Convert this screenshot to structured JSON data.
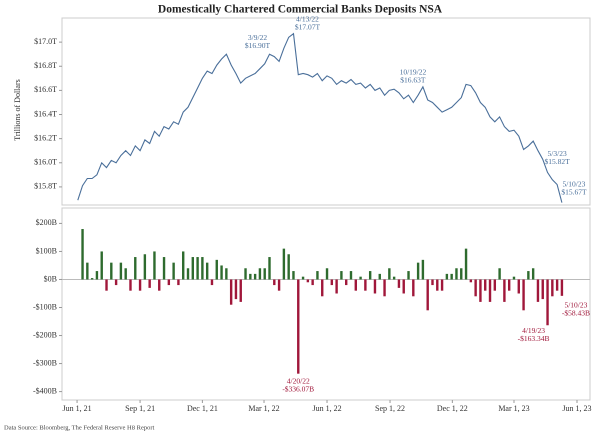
{
  "chart_data": [
    {
      "type": "line",
      "title": "Domestically Chartered Commercial Banks Deposits NSA",
      "y_label": "Trillions of Dollars",
      "color": "#4a6f9a",
      "x": [
        "2021-06-02",
        "2021-06-09",
        "2021-06-16",
        "2021-06-23",
        "2021-06-30",
        "2021-07-07",
        "2021-07-14",
        "2021-07-21",
        "2021-07-28",
        "2021-08-04",
        "2021-08-11",
        "2021-08-18",
        "2021-08-25",
        "2021-09-01",
        "2021-09-08",
        "2021-09-15",
        "2021-09-22",
        "2021-09-29",
        "2021-10-06",
        "2021-10-13",
        "2021-10-20",
        "2021-10-27",
        "2021-11-03",
        "2021-11-10",
        "2021-11-17",
        "2021-11-24",
        "2021-12-01",
        "2021-12-08",
        "2021-12-15",
        "2021-12-22",
        "2021-12-29",
        "2022-01-05",
        "2022-01-12",
        "2022-01-19",
        "2022-01-26",
        "2022-02-02",
        "2022-02-09",
        "2022-02-16",
        "2022-02-23",
        "2022-03-02",
        "2022-03-09",
        "2022-03-16",
        "2022-03-23",
        "2022-03-30",
        "2022-04-06",
        "2022-04-13",
        "2022-04-20",
        "2022-04-27",
        "2022-05-04",
        "2022-05-11",
        "2022-05-18",
        "2022-05-25",
        "2022-06-01",
        "2022-06-08",
        "2022-06-15",
        "2022-06-22",
        "2022-06-29",
        "2022-07-06",
        "2022-07-13",
        "2022-07-20",
        "2022-07-27",
        "2022-08-03",
        "2022-08-10",
        "2022-08-17",
        "2022-08-24",
        "2022-08-31",
        "2022-09-07",
        "2022-09-14",
        "2022-09-21",
        "2022-09-28",
        "2022-10-05",
        "2022-10-12",
        "2022-10-19",
        "2022-10-26",
        "2022-11-02",
        "2022-11-09",
        "2022-11-16",
        "2022-11-23",
        "2022-11-30",
        "2022-12-07",
        "2022-12-14",
        "2022-12-21",
        "2022-12-28",
        "2023-01-04",
        "2023-01-11",
        "2023-01-18",
        "2023-01-25",
        "2023-02-01",
        "2023-02-08",
        "2023-02-15",
        "2023-02-22",
        "2023-03-01",
        "2023-03-08",
        "2023-03-15",
        "2023-03-22",
        "2023-03-29",
        "2023-04-05",
        "2023-04-12",
        "2023-04-19",
        "2023-04-26",
        "2023-05-03",
        "2023-05-10"
      ],
      "values": [
        15.69,
        15.81,
        15.87,
        15.87,
        15.9,
        16.0,
        15.96,
        16.02,
        16.0,
        16.06,
        16.1,
        16.06,
        16.14,
        16.1,
        16.19,
        16.16,
        16.26,
        16.22,
        16.3,
        16.28,
        16.34,
        16.32,
        16.42,
        16.46,
        16.54,
        16.62,
        16.7,
        16.76,
        16.74,
        16.81,
        16.86,
        16.9,
        16.81,
        16.74,
        16.66,
        16.7,
        16.72,
        16.74,
        16.78,
        16.82,
        16.9,
        16.88,
        16.84,
        16.95,
        17.04,
        17.07,
        16.73,
        16.74,
        16.73,
        16.71,
        16.74,
        16.68,
        16.72,
        16.7,
        16.65,
        16.68,
        16.66,
        16.69,
        16.65,
        16.66,
        16.62,
        16.65,
        16.6,
        16.62,
        16.56,
        16.6,
        16.61,
        16.58,
        16.53,
        16.56,
        16.5,
        16.56,
        16.63,
        16.52,
        16.5,
        16.46,
        16.42,
        16.44,
        16.46,
        16.5,
        16.54,
        16.65,
        16.64,
        16.58,
        16.5,
        16.46,
        16.38,
        16.34,
        16.38,
        16.3,
        16.26,
        16.27,
        16.22,
        16.11,
        16.14,
        16.18,
        16.1,
        16.03,
        15.92,
        15.86,
        15.82,
        15.67
      ],
      "xlim": [
        "2021-05-10",
        "2023-06-20"
      ],
      "ylim": [
        15.65,
        17.2
      ],
      "yticks": [
        {
          "value": 15.8,
          "label": "$15.8T"
        },
        {
          "value": 16.0,
          "label": "$16.0T"
        },
        {
          "value": 16.2,
          "label": "$16.2T"
        },
        {
          "value": 16.4,
          "label": "$16.4T"
        },
        {
          "value": 16.6,
          "label": "$16.6T"
        },
        {
          "value": 16.8,
          "label": "$16.8T"
        },
        {
          "value": 17.0,
          "label": "$17.0T"
        }
      ],
      "annotations": [
        {
          "x": "2022-03-09",
          "lines": [
            "3/9/22",
            "$16.90T"
          ]
        },
        {
          "x": "2022-04-13",
          "lines": [
            "4/13/22",
            "$17.07T"
          ]
        },
        {
          "x": "2022-10-19",
          "lines": [
            "10/19/22",
            "$16.63T"
          ]
        },
        {
          "x": "2023-05-03",
          "lines": [
            "5/3/23",
            "$15.82T"
          ]
        },
        {
          "x": "2023-05-10",
          "lines": [
            "5/10/23",
            "$15.67T"
          ]
        }
      ]
    },
    {
      "type": "bar",
      "colors": {
        "positive": "#2e6b2e",
        "negative": "#a0173a"
      },
      "x": [
        "2021-06-02",
        "2021-06-09",
        "2021-06-16",
        "2021-06-23",
        "2021-06-30",
        "2021-07-07",
        "2021-07-14",
        "2021-07-21",
        "2021-07-28",
        "2021-08-04",
        "2021-08-11",
        "2021-08-18",
        "2021-08-25",
        "2021-09-01",
        "2021-09-08",
        "2021-09-15",
        "2021-09-22",
        "2021-09-29",
        "2021-10-06",
        "2021-10-13",
        "2021-10-20",
        "2021-10-27",
        "2021-11-03",
        "2021-11-10",
        "2021-11-17",
        "2021-11-24",
        "2021-12-01",
        "2021-12-08",
        "2021-12-15",
        "2021-12-22",
        "2021-12-29",
        "2022-01-05",
        "2022-01-12",
        "2022-01-19",
        "2022-01-26",
        "2022-02-02",
        "2022-02-09",
        "2022-02-16",
        "2022-02-23",
        "2022-03-02",
        "2022-03-09",
        "2022-03-16",
        "2022-03-23",
        "2022-03-30",
        "2022-04-06",
        "2022-04-13",
        "2022-04-20",
        "2022-04-27",
        "2022-05-04",
        "2022-05-11",
        "2022-05-18",
        "2022-05-25",
        "2022-06-01",
        "2022-06-08",
        "2022-06-15",
        "2022-06-22",
        "2022-06-29",
        "2022-07-06",
        "2022-07-13",
        "2022-07-20",
        "2022-07-27",
        "2022-08-03",
        "2022-08-10",
        "2022-08-17",
        "2022-08-24",
        "2022-08-31",
        "2022-09-07",
        "2022-09-14",
        "2022-09-21",
        "2022-09-28",
        "2022-10-05",
        "2022-10-12",
        "2022-10-19",
        "2022-10-26",
        "2022-11-02",
        "2022-11-09",
        "2022-11-16",
        "2022-11-23",
        "2022-11-30",
        "2022-12-07",
        "2022-12-14",
        "2022-12-21",
        "2022-12-28",
        "2023-01-04",
        "2023-01-11",
        "2023-01-18",
        "2023-01-25",
        "2023-02-01",
        "2023-02-08",
        "2023-02-15",
        "2023-02-22",
        "2023-03-01",
        "2023-03-08",
        "2023-03-15",
        "2023-03-22",
        "2023-03-29",
        "2023-04-05",
        "2023-04-12",
        "2023-04-19",
        "2023-04-26",
        "2023-05-03",
        "2023-05-10"
      ],
      "values": [
        null,
        180,
        60,
        5,
        30,
        100,
        -40,
        60,
        -20,
        60,
        40,
        -40,
        80,
        -40,
        90,
        -30,
        100,
        -40,
        80,
        -20,
        60,
        -20,
        100,
        40,
        80,
        80,
        80,
        60,
        -20,
        70,
        50,
        40,
        -90,
        -70,
        -80,
        40,
        20,
        20,
        40,
        40,
        80,
        -20,
        -40,
        110,
        90,
        30,
        -336.07,
        10,
        -10,
        -20,
        30,
        -60,
        40,
        -20,
        -50,
        30,
        -20,
        30,
        -40,
        10,
        -40,
        30,
        -50,
        20,
        -60,
        40,
        10,
        -30,
        -50,
        30,
        -60,
        60,
        70,
        -110,
        -20,
        -40,
        -40,
        20,
        20,
        40,
        40,
        110,
        -10,
        -60,
        -80,
        -40,
        -80,
        -40,
        40,
        -80,
        -40,
        10,
        -50,
        -110,
        30,
        40,
        -80,
        -70,
        -163.34,
        -60,
        -40,
        -58.43
      ],
      "xlim": [
        "2021-05-10",
        "2023-06-20"
      ],
      "ylim": [
        -430,
        255
      ],
      "yticks": [
        {
          "value": -400,
          "label": "-$400B"
        },
        {
          "value": -300,
          "label": "-$300B"
        },
        {
          "value": -200,
          "label": "-$200B"
        },
        {
          "value": -100,
          "label": "-$100B"
        },
        {
          "value": 0,
          "label": "$0B"
        },
        {
          "value": 100,
          "label": "$100B"
        },
        {
          "value": 200,
          "label": "$200B"
        }
      ],
      "xticks": [
        {
          "value": "2021-06-01",
          "label": "Jun 1, 21"
        },
        {
          "value": "2021-09-01",
          "label": "Sep 1, 21"
        },
        {
          "value": "2021-12-01",
          "label": "Dec 1, 21"
        },
        {
          "value": "2022-03-01",
          "label": "Mar 1, 22"
        },
        {
          "value": "2022-06-01",
          "label": "Jun 1, 22"
        },
        {
          "value": "2022-09-01",
          "label": "Sep 1, 22"
        },
        {
          "value": "2022-12-01",
          "label": "Dec 1, 22"
        },
        {
          "value": "2023-03-01",
          "label": "Mar 1, 23"
        },
        {
          "value": "2023-06-01",
          "label": "Jun 1, 23"
        }
      ],
      "annotations": [
        {
          "x": "2022-04-20",
          "lines": [
            "4/20/22",
            "-$336.07B"
          ]
        },
        {
          "x": "2023-04-19",
          "lines": [
            "4/19/23",
            "-$163.34B"
          ]
        },
        {
          "x": "2023-05-10",
          "lines": [
            "5/10/23",
            "-$58.43B"
          ]
        }
      ]
    }
  ],
  "footer": {
    "source": "Data Source: Bloomberg, The Federal Reserve H8 Report"
  }
}
